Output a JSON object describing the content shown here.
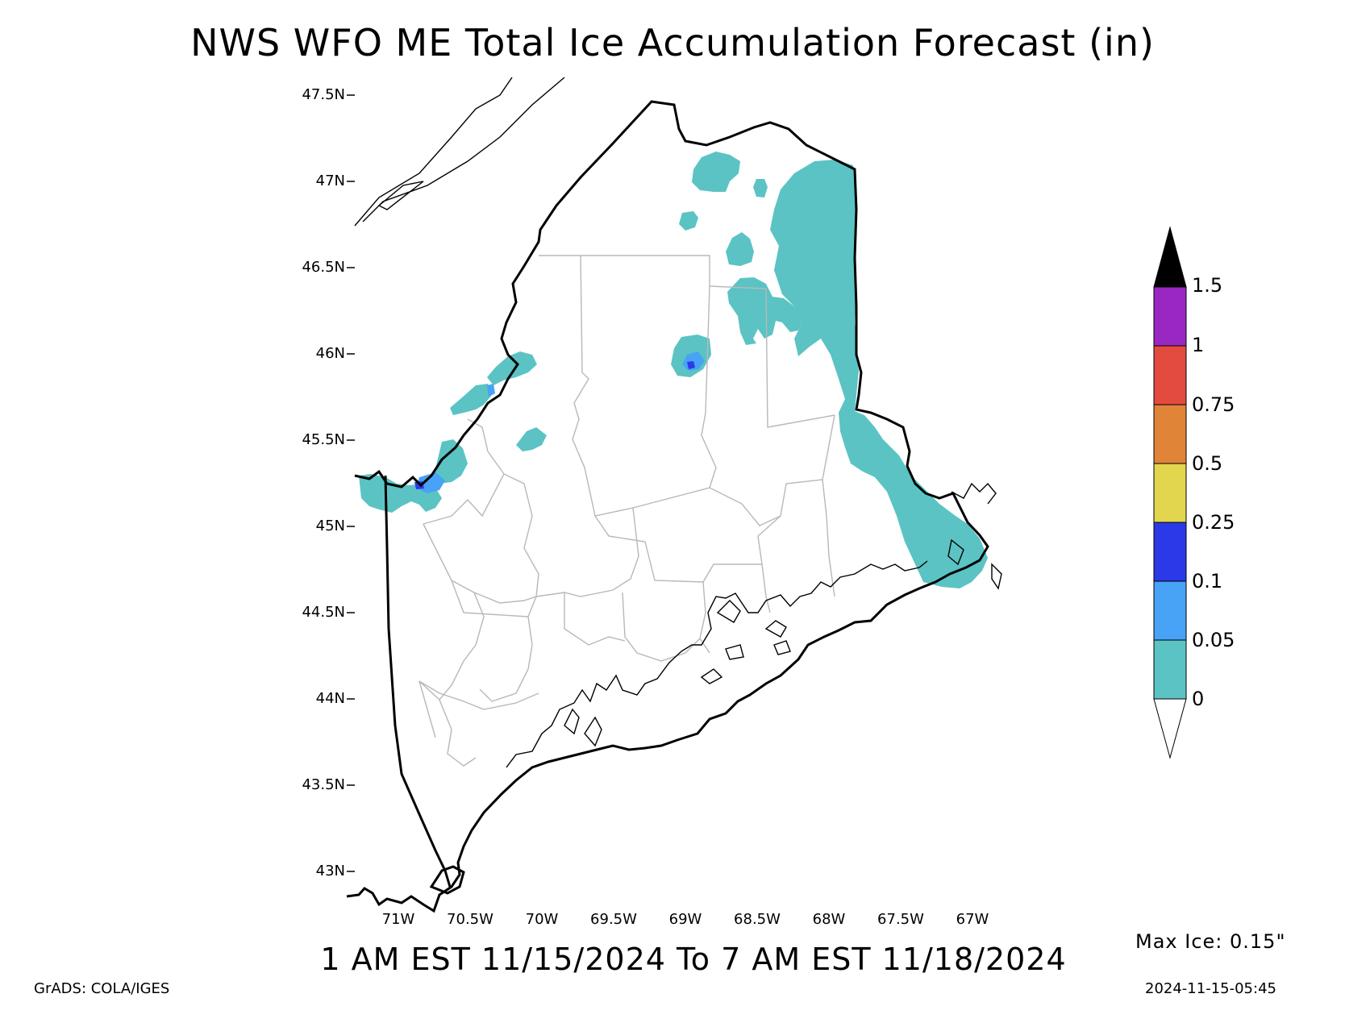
{
  "title": "NWS WFO ME Total Ice Accumulation Forecast (in)",
  "valid_period": "1 AM EST 11/15/2024 To 7 AM EST 11/18/2024",
  "max_ice": "Max Ice: 0.15\"",
  "timestamp": "2024-11-15-05:45",
  "credit": "GrADS: COLA/IGES",
  "lat_labels": [
    "47.5N",
    "47N",
    "46.5N",
    "46N",
    "45.5N",
    "45N",
    "44.5N",
    "44N",
    "43.5N",
    "43N"
  ],
  "lon_labels": [
    "71W",
    "70.5W",
    "70W",
    "69.5W",
    "69W",
    "68.5W",
    "68W",
    "67.5W",
    "67W"
  ],
  "colorbar": {
    "labels": [
      "1.5",
      "1",
      "0.75",
      "0.5",
      "0.25",
      "0.1",
      "0.05",
      "0"
    ],
    "bins": [
      {
        "range": "0-0.05",
        "color": "#5bc3c4"
      },
      {
        "range": "0.05-0.1",
        "color": "#48a2f6"
      },
      {
        "range": "0.1-0.25",
        "color": "#2b39e8"
      },
      {
        "range": "0.25-0.5",
        "color": "#e2d64f"
      },
      {
        "range": "0.5-0.75",
        "color": "#e08438"
      },
      {
        "range": "0.75-1",
        "color": "#e34b3f"
      },
      {
        "range": "1-1.5",
        "color": "#9b27c3"
      },
      {
        "range": ">1.5",
        "color": "#000000"
      }
    ]
  },
  "colors": {
    "ice_light": "#5bc3c4",
    "ice_medium": "#48a2f6",
    "ice_heavy": "#2b39e8",
    "county_lines": "#b8b8b8",
    "state_outline": "#000000"
  }
}
